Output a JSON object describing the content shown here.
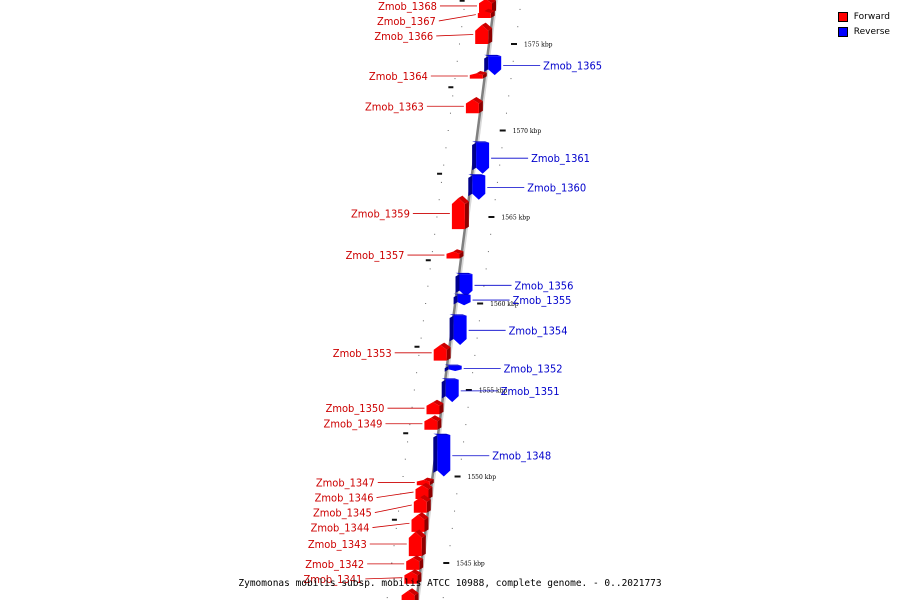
{
  "legend": {
    "forward": {
      "label": "Forward",
      "color": "#ff0000"
    },
    "reverse": {
      "label": "Reverse",
      "color": "#0000ff"
    }
  },
  "caption": "Zymomonas mobilis subsp. mobilis ATCC 10988, complete genome. - 0..2021773",
  "colors": {
    "forward_label": "#cc0000",
    "reverse_label": "#0000cc",
    "axis": "#808080"
  },
  "kbp_ticks": [
    {
      "kbp": 1575,
      "label": "1575 kbp"
    },
    {
      "kbp": 1570,
      "label": "1570 kbp"
    },
    {
      "kbp": 1565,
      "label": "1565 kbp"
    },
    {
      "kbp": 1560,
      "label": "1560 kbp"
    },
    {
      "kbp": 1555,
      "label": "1555 kbp"
    },
    {
      "kbp": 1550,
      "label": "1550 kbp"
    },
    {
      "kbp": 1545,
      "label": "1545 kbp"
    }
  ],
  "genes": [
    {
      "name": "Zmob_1368",
      "strand": "forward",
      "start_kbp": 1577.6,
      "end_kbp": 1576.8
    },
    {
      "name": "Zmob_1367",
      "strand": "forward",
      "start_kbp": 1576.9,
      "end_kbp": 1576.5
    },
    {
      "name": "Zmob_1366",
      "strand": "forward",
      "start_kbp": 1576.1,
      "end_kbp": 1575.0
    },
    {
      "name": "Zmob_1364",
      "strand": "forward",
      "start_kbp": 1573.3,
      "end_kbp": 1573.0
    },
    {
      "name": "Zmob_1363",
      "strand": "forward",
      "start_kbp": 1571.8,
      "end_kbp": 1571.0
    },
    {
      "name": "Zmob_1365",
      "strand": "reverse",
      "start_kbp": 1574.3,
      "end_kbp": 1573.2
    },
    {
      "name": "Zmob_1361",
      "strand": "reverse",
      "start_kbp": 1569.3,
      "end_kbp": 1567.5
    },
    {
      "name": "Zmob_1360",
      "strand": "reverse",
      "start_kbp": 1567.4,
      "end_kbp": 1566.0
    },
    {
      "name": "Zmob_1359",
      "strand": "forward",
      "start_kbp": 1566.1,
      "end_kbp": 1564.3
    },
    {
      "name": "Zmob_1357",
      "strand": "forward",
      "start_kbp": 1563.0,
      "end_kbp": 1562.6
    },
    {
      "name": "Zmob_1356",
      "strand": "reverse",
      "start_kbp": 1561.7,
      "end_kbp": 1560.4
    },
    {
      "name": "Zmob_1355",
      "strand": "reverse",
      "start_kbp": 1560.5,
      "end_kbp": 1559.9
    },
    {
      "name": "Zmob_1354",
      "strand": "reverse",
      "start_kbp": 1559.3,
      "end_kbp": 1557.6
    },
    {
      "name": "Zmob_1353",
      "strand": "forward",
      "start_kbp": 1557.6,
      "end_kbp": 1556.7
    },
    {
      "name": "Zmob_1352",
      "strand": "reverse",
      "start_kbp": 1556.4,
      "end_kbp": 1556.1
    },
    {
      "name": "Zmob_1351",
      "strand": "reverse",
      "start_kbp": 1555.6,
      "end_kbp": 1554.3
    },
    {
      "name": "Zmob_1350",
      "strand": "forward",
      "start_kbp": 1554.3,
      "end_kbp": 1553.6
    },
    {
      "name": "Zmob_1349",
      "strand": "forward",
      "start_kbp": 1553.4,
      "end_kbp": 1552.7
    },
    {
      "name": "Zmob_1348",
      "strand": "reverse",
      "start_kbp": 1552.4,
      "end_kbp": 1550.0
    },
    {
      "name": "Zmob_1347",
      "strand": "forward",
      "start_kbp": 1549.8,
      "end_kbp": 1549.5
    },
    {
      "name": "Zmob_1346",
      "strand": "forward",
      "start_kbp": 1549.5,
      "end_kbp": 1548.7
    },
    {
      "name": "Zmob_1345",
      "strand": "forward",
      "start_kbp": 1548.8,
      "end_kbp": 1547.9
    },
    {
      "name": "Zmob_1344",
      "strand": "forward",
      "start_kbp": 1547.8,
      "end_kbp": 1546.8
    },
    {
      "name": "Zmob_1343",
      "strand": "forward",
      "start_kbp": 1546.8,
      "end_kbp": 1545.4
    },
    {
      "name": "Zmob_1342",
      "strand": "forward",
      "start_kbp": 1545.3,
      "end_kbp": 1544.6
    },
    {
      "name": "Zmob_1341",
      "strand": "forward",
      "start_kbp": 1544.5,
      "end_kbp": 1543.8
    },
    {
      "name": "",
      "strand": "forward",
      "start_kbp": 1543.4,
      "end_kbp": 1542.5
    }
  ]
}
